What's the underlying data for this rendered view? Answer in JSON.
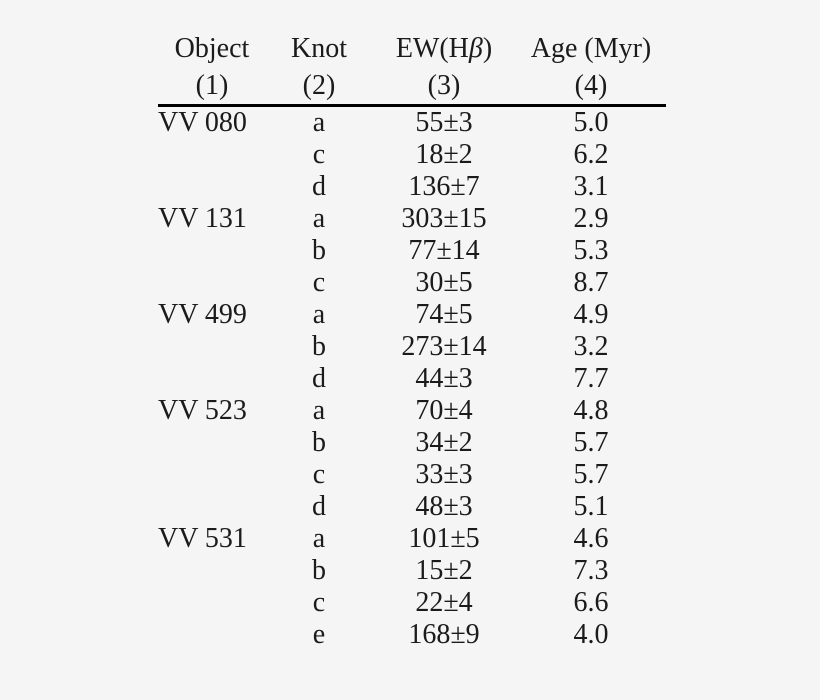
{
  "page": {
    "background": "#f5f5f5",
    "text_color": "#1b1b1b",
    "rule_color": "#000000"
  },
  "table": {
    "header": {
      "col1_label": "Object",
      "col1_number": "(1)",
      "col2_label": "Knot",
      "col2_number": "(2)",
      "col3_label_prefix": "EW(H",
      "col3_label_beta": "β",
      "col3_label_suffix": ")",
      "col3_number": "(3)",
      "col4_label": "Age (Myr)",
      "col4_number": "(4)"
    },
    "rows": [
      {
        "object": "VV 080",
        "knot": "a",
        "ew": "55±3",
        "age": "5.0"
      },
      {
        "object": "",
        "knot": "c",
        "ew": "18±2",
        "age": "6.2"
      },
      {
        "object": "",
        "knot": "d",
        "ew": "136±7",
        "age": "3.1"
      },
      {
        "object": "VV 131",
        "knot": "a",
        "ew": "303±15",
        "age": "2.9"
      },
      {
        "object": "",
        "knot": "b",
        "ew": "77±14",
        "age": "5.3"
      },
      {
        "object": "",
        "knot": "c",
        "ew": "30±5",
        "age": "8.7"
      },
      {
        "object": "VV 499",
        "knot": "a",
        "ew": "74±5",
        "age": "4.9"
      },
      {
        "object": "",
        "knot": "b",
        "ew": "273±14",
        "age": "3.2"
      },
      {
        "object": "",
        "knot": "d",
        "ew": "44±3",
        "age": "7.7"
      },
      {
        "object": "VV 523",
        "knot": "a",
        "ew": "70±4",
        "age": "4.8"
      },
      {
        "object": "",
        "knot": "b",
        "ew": "34±2",
        "age": "5.7"
      },
      {
        "object": "",
        "knot": "c",
        "ew": "33±3",
        "age": "5.7"
      },
      {
        "object": "",
        "knot": "d",
        "ew": "48±3",
        "age": "5.1"
      },
      {
        "object": "VV 531",
        "knot": "a",
        "ew": "101±5",
        "age": "4.6"
      },
      {
        "object": "",
        "knot": "b",
        "ew": "15±2",
        "age": "7.3"
      },
      {
        "object": "",
        "knot": "c",
        "ew": "22±4",
        "age": "6.6"
      },
      {
        "object": "",
        "knot": "e",
        "ew": "168±9",
        "age": "4.0"
      }
    ]
  }
}
